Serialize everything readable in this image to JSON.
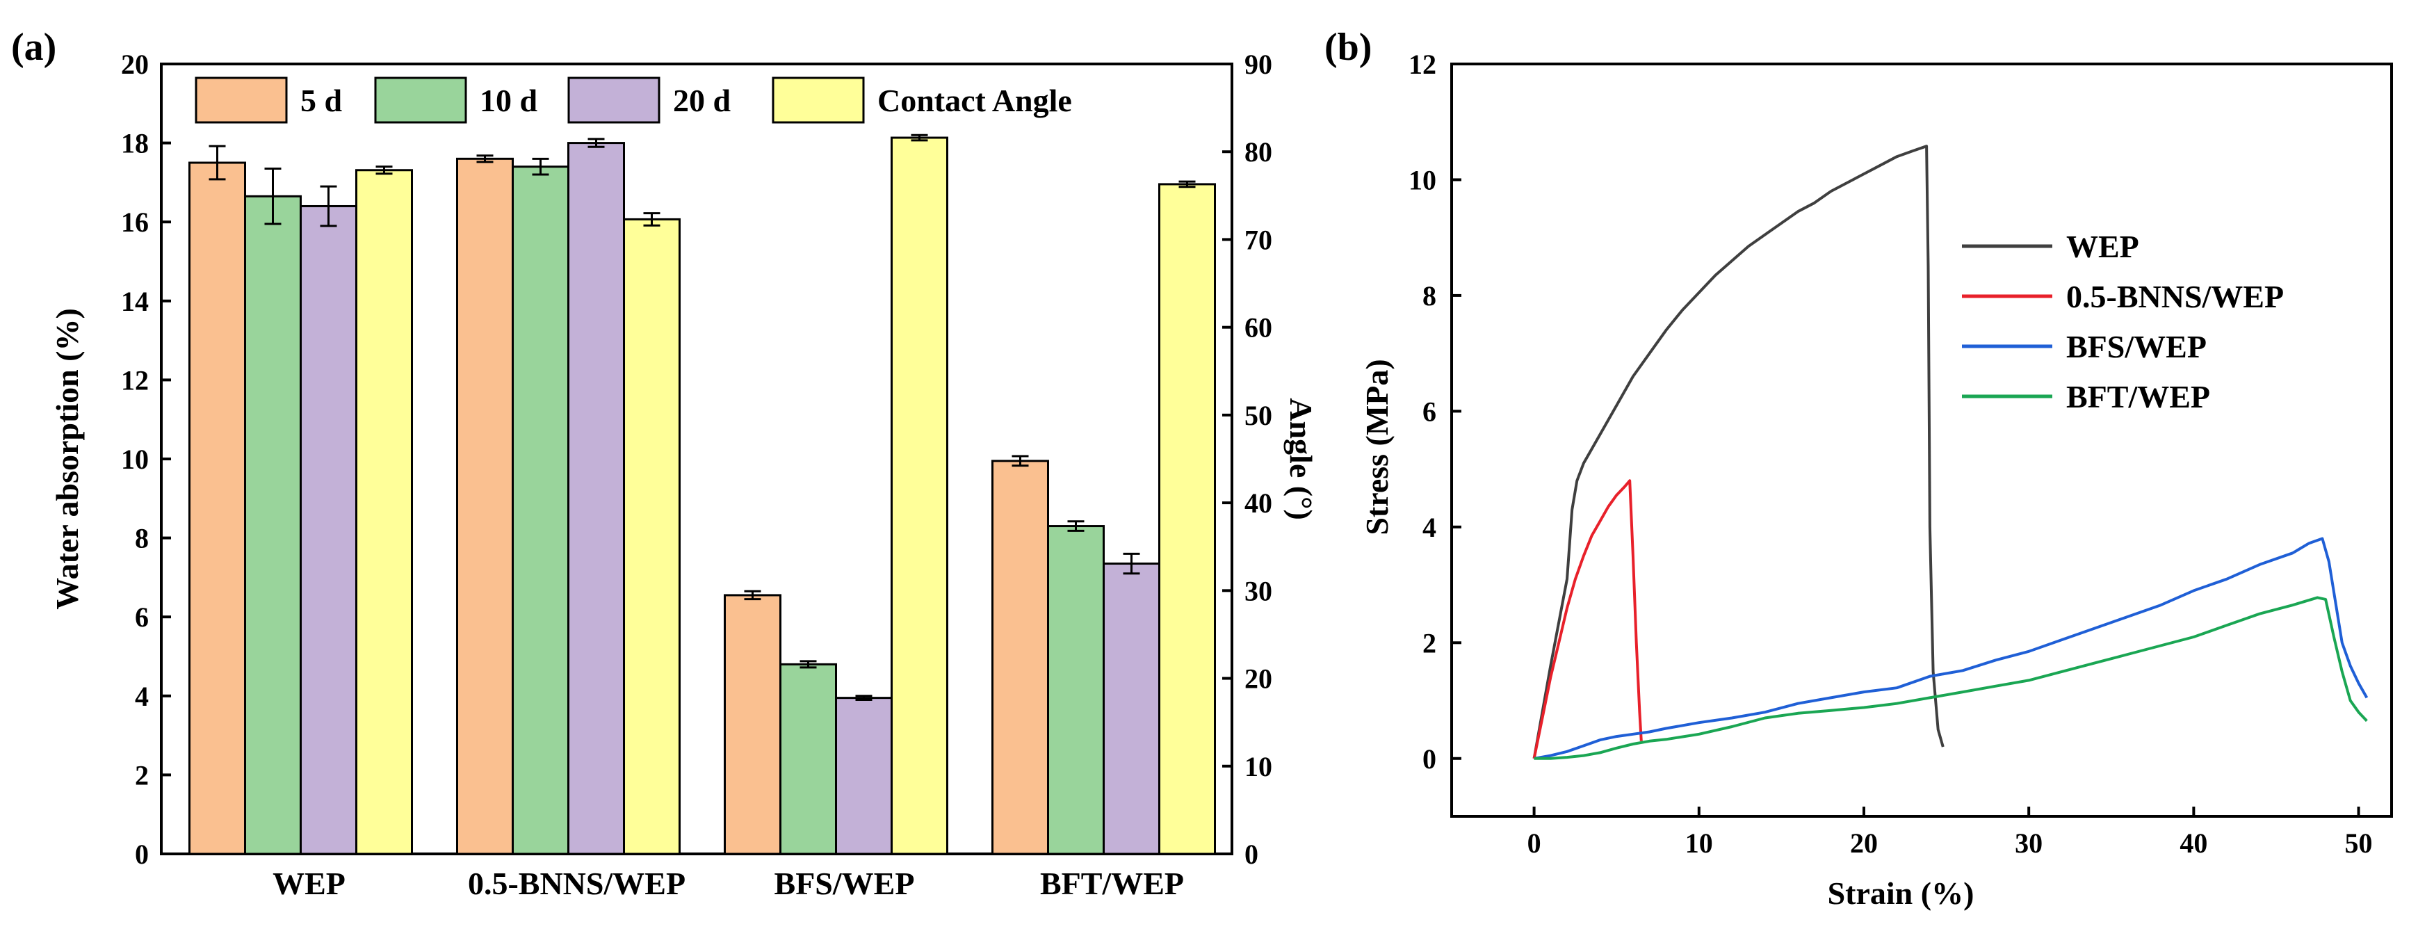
{
  "figure": {
    "panel_a_label": "(a)",
    "panel_b_label": "(b)"
  },
  "chart_data": [
    {
      "type": "bar",
      "panel": "(a)",
      "categories": [
        "WEP",
        "0.5-BNNS/WEP",
        "BFS/WEP",
        "BFT/WEP"
      ],
      "ylabel": "Water absorption (%)",
      "y2label": "Angle (°)",
      "ylim": [
        0,
        20
      ],
      "y2lim": [
        0,
        90
      ],
      "yticks": [
        "0",
        "2",
        "4",
        "6",
        "8",
        "10",
        "12",
        "14",
        "16",
        "18",
        "20"
      ],
      "y2ticks": [
        "0",
        "10",
        "20",
        "30",
        "40",
        "50",
        "60",
        "70",
        "80",
        "90"
      ],
      "legend_position": "top",
      "series": [
        {
          "name": "5 d",
          "axis": "left",
          "color": "#FAC090",
          "values": [
            17.5,
            17.6,
            6.55,
            9.95
          ],
          "errors": [
            0.42,
            0.08,
            0.1,
            0.12
          ]
        },
        {
          "name": "10 d",
          "axis": "left",
          "color": "#99D49B",
          "values": [
            16.65,
            17.4,
            4.8,
            8.3
          ],
          "errors": [
            0.7,
            0.2,
            0.08,
            0.12
          ]
        },
        {
          "name": "20 d",
          "axis": "left",
          "color": "#C3B1D7",
          "values": [
            16.4,
            18.0,
            3.95,
            7.35
          ],
          "errors": [
            0.5,
            0.1,
            0.05,
            0.25
          ]
        },
        {
          "name": "Contact Angle",
          "axis": "right",
          "color": "#FFFF99",
          "values": [
            77.9,
            72.3,
            81.6,
            76.3
          ],
          "errors": [
            0.4,
            0.7,
            0.3,
            0.3
          ]
        }
      ]
    },
    {
      "type": "line",
      "panel": "(b)",
      "xlabel": "Strain (%)",
      "ylabel": "Stress (MPa)",
      "xlim": [
        -5,
        52
      ],
      "ylim": [
        -1,
        12
      ],
      "xticks": [
        "0",
        "10",
        "20",
        "30",
        "40",
        "50"
      ],
      "yticks": [
        "0",
        "2",
        "4",
        "6",
        "8",
        "10",
        "12"
      ],
      "legend_position": "center-right",
      "series": [
        {
          "name": "WEP",
          "color": "#3f3f3f",
          "x": [
            0,
            1,
            2,
            2.3,
            2.6,
            3,
            4,
            5,
            6,
            7,
            8,
            9,
            10,
            11,
            12,
            13,
            14,
            15,
            16,
            17,
            18,
            19,
            20,
            21,
            22,
            23,
            23.8,
            23.9,
            24.0,
            24.2,
            24.5,
            24.8
          ],
          "y": [
            0,
            1.6,
            3.1,
            4.3,
            4.8,
            5.1,
            5.6,
            6.1,
            6.6,
            7.0,
            7.4,
            7.75,
            8.05,
            8.35,
            8.6,
            8.85,
            9.05,
            9.25,
            9.45,
            9.6,
            9.8,
            9.95,
            10.1,
            10.25,
            10.4,
            10.5,
            10.58,
            8.5,
            4.0,
            1.5,
            0.5,
            0.2
          ]
        },
        {
          "name": "0.5-BNNS/WEP",
          "color": "#e8202a",
          "x": [
            0,
            0.5,
            1,
            1.5,
            2,
            2.5,
            3,
            3.5,
            4,
            4.5,
            5,
            5.5,
            5.8,
            6.0,
            6.2,
            6.4,
            6.5
          ],
          "y": [
            0,
            0.7,
            1.4,
            2.0,
            2.6,
            3.1,
            3.5,
            3.85,
            4.1,
            4.35,
            4.55,
            4.7,
            4.8,
            3.5,
            2.0,
            0.8,
            0.3
          ]
        },
        {
          "name": "BFS/WEP",
          "color": "#1f5fd6",
          "x": [
            0,
            1,
            2,
            3,
            4,
            5,
            6,
            7,
            8,
            10,
            12,
            14,
            16,
            18,
            20,
            22,
            24,
            26,
            28,
            30,
            32,
            34,
            36,
            38,
            40,
            42,
            44,
            46,
            47,
            47.8,
            48.2,
            49,
            49.5,
            50,
            50.5
          ],
          "y": [
            0,
            0.05,
            0.12,
            0.22,
            0.32,
            0.38,
            0.42,
            0.46,
            0.52,
            0.62,
            0.7,
            0.8,
            0.95,
            1.05,
            1.15,
            1.22,
            1.42,
            1.52,
            1.7,
            1.85,
            2.05,
            2.25,
            2.45,
            2.65,
            2.9,
            3.1,
            3.35,
            3.55,
            3.72,
            3.8,
            3.4,
            2.0,
            1.6,
            1.3,
            1.05
          ]
        },
        {
          "name": "BFT/WEP",
          "color": "#1aa653",
          "x": [
            0,
            1,
            2,
            3,
            4,
            5,
            6,
            7,
            8,
            10,
            12,
            14,
            16,
            18,
            20,
            22,
            24,
            26,
            28,
            30,
            32,
            34,
            36,
            38,
            40,
            42,
            44,
            46,
            47.5,
            48,
            48.5,
            49,
            49.5,
            50,
            50.5
          ],
          "y": [
            0,
            0.0,
            0.02,
            0.05,
            0.1,
            0.18,
            0.25,
            0.3,
            0.33,
            0.42,
            0.55,
            0.7,
            0.78,
            0.83,
            0.88,
            0.95,
            1.05,
            1.15,
            1.25,
            1.35,
            1.5,
            1.65,
            1.8,
            1.95,
            2.1,
            2.3,
            2.5,
            2.65,
            2.78,
            2.75,
            2.1,
            1.5,
            1.0,
            0.8,
            0.65
          ]
        }
      ]
    }
  ]
}
